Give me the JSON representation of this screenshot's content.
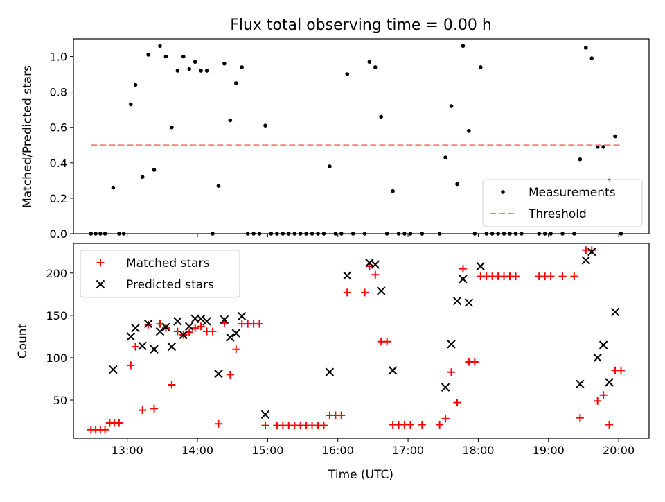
{
  "figure_title": "Flux total observing time = 0.00 h",
  "colors": {
    "measurements": "#000000",
    "threshold": "#ff7f7f",
    "matched": "#ff0000",
    "predicted": "#000000"
  },
  "chart_data": [
    {
      "type": "scatter",
      "title": "Flux total observing time = 0.00 h",
      "xlabel": "",
      "ylabel": "Matched/Predicted stars",
      "xlim": [
        "12:14",
        "20:26"
      ],
      "ylim": [
        0,
        1.1
      ],
      "x_ticks": [
        "13:00",
        "14:00",
        "15:00",
        "16:00",
        "17:00",
        "18:00",
        "19:00",
        "20:00"
      ],
      "y_ticks": [
        "0.0",
        "0.2",
        "0.4",
        "0.6",
        "0.8",
        "1.0"
      ],
      "legend_position": "lower right",
      "series": [
        {
          "name": "Measurements",
          "marker": "dot",
          "points": [
            [
              "12:29",
              0
            ],
            [
              "12:33",
              0
            ],
            [
              "12:37",
              0
            ],
            [
              "12:41",
              0
            ],
            [
              "12:48",
              0.26
            ],
            [
              "12:53",
              0
            ],
            [
              "12:57",
              0
            ],
            [
              "13:03",
              0.73
            ],
            [
              "13:07",
              0.84
            ],
            [
              "13:13",
              0.32
            ],
            [
              "13:18",
              1.01
            ],
            [
              "13:23",
              0.36
            ],
            [
              "13:28",
              1.06
            ],
            [
              "13:33",
              1.0
            ],
            [
              "13:38",
              0.6
            ],
            [
              "13:43",
              0.92
            ],
            [
              "13:48",
              1.0
            ],
            [
              "13:53",
              0.93
            ],
            [
              "13:58",
              0.97
            ],
            [
              "14:03",
              0.92
            ],
            [
              "14:08",
              0.92
            ],
            [
              "14:13",
              0
            ],
            [
              "14:18",
              0.27
            ],
            [
              "14:23",
              0.96
            ],
            [
              "14:28",
              0.64
            ],
            [
              "14:33",
              0.85
            ],
            [
              "14:38",
              0.94
            ],
            [
              "14:43",
              0
            ],
            [
              "14:48",
              0
            ],
            [
              "14:53",
              0
            ],
            [
              "14:58",
              0.61
            ],
            [
              "15:03",
              0
            ],
            [
              "15:08",
              0
            ],
            [
              "15:13",
              0
            ],
            [
              "15:18",
              0
            ],
            [
              "15:23",
              0
            ],
            [
              "15:28",
              0
            ],
            [
              "15:33",
              0
            ],
            [
              "15:38",
              0
            ],
            [
              "15:43",
              0
            ],
            [
              "15:48",
              0
            ],
            [
              "15:53",
              0.38
            ],
            [
              "15:58",
              0
            ],
            [
              "16:03",
              0
            ],
            [
              "16:08",
              0.9
            ],
            [
              "16:13",
              0
            ],
            [
              "16:23",
              0
            ],
            [
              "16:27",
              0.97
            ],
            [
              "16:32",
              0.94
            ],
            [
              "16:37",
              0.66
            ],
            [
              "16:42",
              0
            ],
            [
              "16:47",
              0.24
            ],
            [
              "16:52",
              0
            ],
            [
              "16:57",
              0
            ],
            [
              "17:02",
              0
            ],
            [
              "17:12",
              0
            ],
            [
              "17:27",
              0
            ],
            [
              "17:32",
              0.43
            ],
            [
              "17:37",
              0.72
            ],
            [
              "17:42",
              0.28
            ],
            [
              "17:47",
              1.06
            ],
            [
              "17:52",
              0.58
            ],
            [
              "17:57",
              0
            ],
            [
              "18:02",
              0.94
            ],
            [
              "18:07",
              0
            ],
            [
              "18:12",
              0
            ],
            [
              "18:17",
              0
            ],
            [
              "18:22",
              0
            ],
            [
              "18:27",
              0
            ],
            [
              "18:32",
              0
            ],
            [
              "18:37",
              0
            ],
            [
              "18:52",
              0
            ],
            [
              "18:57",
              0
            ],
            [
              "19:02",
              0
            ],
            [
              "19:12",
              0
            ],
            [
              "19:22",
              0
            ],
            [
              "19:27",
              0.42
            ],
            [
              "19:32",
              1.05
            ],
            [
              "19:37",
              0.99
            ],
            [
              "19:42",
              0.49
            ],
            [
              "19:47",
              0.49
            ],
            [
              "19:52",
              0.3
            ],
            [
              "19:57",
              0.55
            ],
            [
              "20:02",
              0
            ]
          ]
        },
        {
          "name": "Threshold",
          "style": "dashed",
          "x": [
            "12:29",
            "20:02"
          ],
          "y": [
            0.5,
            0.5
          ]
        }
      ]
    },
    {
      "type": "scatter",
      "title": "",
      "xlabel": "Time (UTC)",
      "ylabel": "Count",
      "xlim": [
        "12:14",
        "20:26"
      ],
      "ylim": [
        5,
        235
      ],
      "x_ticks": [
        "13:00",
        "14:00",
        "15:00",
        "16:00",
        "17:00",
        "18:00",
        "19:00",
        "20:00"
      ],
      "y_ticks": [
        "50",
        "100",
        "150",
        "200"
      ],
      "legend_position": "upper left",
      "series": [
        {
          "name": "Matched stars",
          "marker": "plus",
          "points": [
            [
              "12:29",
              15
            ],
            [
              "12:33",
              15
            ],
            [
              "12:37",
              15
            ],
            [
              "12:41",
              15
            ],
            [
              "12:45",
              23
            ],
            [
              "12:49",
              23
            ],
            [
              "12:53",
              23
            ],
            [
              "13:03",
              91
            ],
            [
              "13:07",
              113
            ],
            [
              "13:13",
              38
            ],
            [
              "13:18",
              139
            ],
            [
              "13:23",
              40
            ],
            [
              "13:28",
              140
            ],
            [
              "13:33",
              135
            ],
            [
              "13:38",
              68
            ],
            [
              "13:43",
              131
            ],
            [
              "13:48",
              127
            ],
            [
              "13:53",
              130
            ],
            [
              "13:58",
              135
            ],
            [
              "14:03",
              137
            ],
            [
              "14:08",
              131
            ],
            [
              "14:13",
              131
            ],
            [
              "14:18",
              22
            ],
            [
              "14:23",
              141
            ],
            [
              "14:28",
              80
            ],
            [
              "14:33",
              110
            ],
            [
              "14:38",
              140
            ],
            [
              "14:43",
              140
            ],
            [
              "14:48",
              140
            ],
            [
              "14:53",
              140
            ],
            [
              "14:58",
              20
            ],
            [
              "15:08",
              20
            ],
            [
              "15:13",
              20
            ],
            [
              "15:18",
              20
            ],
            [
              "15:23",
              20
            ],
            [
              "15:28",
              20
            ],
            [
              "15:33",
              20
            ],
            [
              "15:38",
              20
            ],
            [
              "15:43",
              20
            ],
            [
              "15:48",
              20
            ],
            [
              "15:53",
              32
            ],
            [
              "15:58",
              32
            ],
            [
              "16:03",
              32
            ],
            [
              "16:08",
              177
            ],
            [
              "16:23",
              177
            ],
            [
              "16:27",
              208
            ],
            [
              "16:32",
              198
            ],
            [
              "16:37",
              119
            ],
            [
              "16:42",
              119
            ],
            [
              "16:47",
              21
            ],
            [
              "16:52",
              21
            ],
            [
              "16:57",
              21
            ],
            [
              "17:02",
              21
            ],
            [
              "17:12",
              21
            ],
            [
              "17:27",
              21
            ],
            [
              "17:32",
              28
            ],
            [
              "17:37",
              83
            ],
            [
              "17:42",
              47
            ],
            [
              "17:47",
              205
            ],
            [
              "17:52",
              95
            ],
            [
              "17:57",
              95
            ],
            [
              "18:02",
              196
            ],
            [
              "18:07",
              196
            ],
            [
              "18:12",
              196
            ],
            [
              "18:17",
              196
            ],
            [
              "18:22",
              196
            ],
            [
              "18:27",
              196
            ],
            [
              "18:32",
              196
            ],
            [
              "18:52",
              196
            ],
            [
              "18:57",
              196
            ],
            [
              "19:02",
              196
            ],
            [
              "19:12",
              196
            ],
            [
              "19:22",
              196
            ],
            [
              "19:27",
              29
            ],
            [
              "19:32",
              227
            ],
            [
              "19:37",
              227
            ],
            [
              "19:42",
              49
            ],
            [
              "19:47",
              56
            ],
            [
              "19:52",
              21
            ],
            [
              "19:57",
              85
            ],
            [
              "20:02",
              85
            ]
          ]
        },
        {
          "name": "Predicted stars",
          "marker": "x",
          "points": [
            [
              "12:48",
              86
            ],
            [
              "13:03",
              125
            ],
            [
              "13:07",
              135
            ],
            [
              "13:13",
              114
            ],
            [
              "13:18",
              140
            ],
            [
              "13:23",
              110
            ],
            [
              "13:28",
              131
            ],
            [
              "13:33",
              136
            ],
            [
              "13:38",
              113
            ],
            [
              "13:43",
              143
            ],
            [
              "13:48",
              127
            ],
            [
              "13:53",
              137
            ],
            [
              "13:58",
              146
            ],
            [
              "14:03",
              146
            ],
            [
              "14:08",
              143
            ],
            [
              "14:18",
              81
            ],
            [
              "14:23",
              145
            ],
            [
              "14:28",
              124
            ],
            [
              "14:33",
              129
            ],
            [
              "14:38",
              149
            ],
            [
              "14:58",
              33
            ],
            [
              "15:53",
              83
            ],
            [
              "16:08",
              197
            ],
            [
              "16:27",
              212
            ],
            [
              "16:32",
              210
            ],
            [
              "16:37",
              179
            ],
            [
              "16:47",
              85
            ],
            [
              "17:32",
              65
            ],
            [
              "17:37",
              116
            ],
            [
              "17:42",
              167
            ],
            [
              "17:47",
              193
            ],
            [
              "17:52",
              165
            ],
            [
              "18:02",
              208
            ],
            [
              "19:27",
              69
            ],
            [
              "19:32",
              215
            ],
            [
              "19:37",
              225
            ],
            [
              "19:42",
              100
            ],
            [
              "19:47",
              115
            ],
            [
              "19:52",
              71
            ],
            [
              "19:57",
              154
            ]
          ]
        }
      ]
    }
  ]
}
